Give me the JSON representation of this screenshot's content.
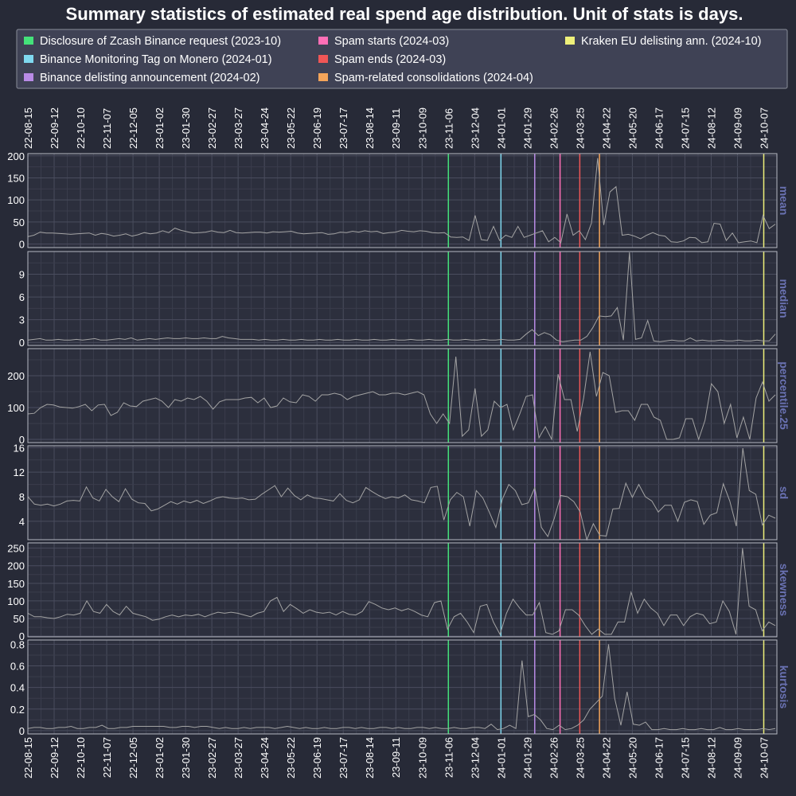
{
  "chart_data": {
    "type": "line",
    "title": "Summary statistics of estimated real spend age distribution. Unit of stats is days.",
    "x_start": "2022-08-15",
    "x_end": "2024-10-21",
    "x_tick_labels": [
      "22-08-15",
      "22-09-12",
      "22-10-10",
      "22-11-07",
      "22-12-05",
      "23-01-02",
      "23-01-30",
      "23-02-27",
      "23-03-27",
      "23-04-24",
      "23-05-22",
      "23-06-19",
      "23-07-17",
      "23-08-14",
      "23-09-11",
      "23-10-09",
      "23-11-06",
      "23-12-04",
      "24-01-01",
      "24-01-29",
      "24-02-26",
      "24-03-25",
      "24-04-22",
      "24-05-20",
      "24-06-17",
      "24-07-15",
      "24-08-12",
      "24-09-09",
      "24-10-07"
    ],
    "events": [
      {
        "label": "Disclosure of Zcash Binance request (2023-10)",
        "date": "2023-11-06",
        "color": "#44e27a"
      },
      {
        "label": "Binance Monitoring Tag on Monero (2024-01)",
        "date": "2024-01-01",
        "color": "#7fd8ef"
      },
      {
        "label": "Binance delisting announcement (2024-02)",
        "date": "2024-02-06",
        "color": "#b98be6"
      },
      {
        "label": "Spam starts (2024-03)",
        "date": "2024-03-04",
        "color": "#ff6fb6"
      },
      {
        "label": "Spam ends (2024-03)",
        "date": "2024-03-25",
        "color": "#f05656"
      },
      {
        "label": "Spam-related consolidations (2024-04)",
        "date": "2024-04-15",
        "color": "#f5a55a"
      },
      {
        "label": "Kraken EU delisting ann. (2024-10)",
        "date": "2024-10-07",
        "color": "#eef07a"
      }
    ],
    "line_color": "#a3a3a3",
    "panels": [
      {
        "name": "mean",
        "ylim": [
          -8,
          205
        ],
        "yticks": [
          0,
          50,
          100,
          150,
          200
        ],
        "values": [
          17,
          20,
          27,
          25,
          25,
          24,
          23,
          22,
          23,
          24,
          25,
          20,
          24,
          22,
          18,
          20,
          23,
          18,
          21,
          26,
          23,
          25,
          30,
          26,
          36,
          31,
          28,
          25,
          26,
          27,
          30,
          27,
          26,
          31,
          26,
          25,
          26,
          27,
          27,
          25,
          28,
          27,
          28,
          29,
          25,
          23,
          24,
          25,
          26,
          22,
          23,
          27,
          26,
          29,
          27,
          30,
          28,
          29,
          24,
          26,
          27,
          31,
          29,
          28,
          30,
          29,
          26,
          25,
          26,
          16,
          15,
          16,
          8,
          65,
          10,
          8,
          40,
          8,
          20,
          15,
          40,
          15,
          20,
          25,
          30,
          5,
          15,
          3,
          68,
          20,
          30,
          10,
          48,
          195,
          43,
          118,
          130,
          20,
          22,
          18,
          12,
          20,
          26,
          20,
          18,
          5,
          4,
          7,
          15,
          14,
          3,
          5,
          47,
          45,
          8,
          25,
          3,
          5,
          7,
          3,
          65,
          35,
          45
        ]
      },
      {
        "name": "median",
        "ylim": [
          -0.4,
          12
        ],
        "yticks": [
          0,
          3,
          6,
          9
        ],
        "values": [
          0.3,
          0.4,
          0.5,
          0.3,
          0.3,
          0.4,
          0.3,
          0.3,
          0.4,
          0.3,
          0.4,
          0.5,
          0.3,
          0.3,
          0.4,
          0.5,
          0.4,
          0.6,
          0.3,
          0.4,
          0.5,
          0.4,
          0.5,
          0.6,
          0.5,
          0.5,
          0.6,
          0.5,
          0.5,
          0.6,
          0.5,
          0.5,
          0.8,
          0.6,
          0.5,
          0.4,
          0.4,
          0.4,
          0.3,
          0.4,
          0.3,
          0.3,
          0.4,
          0.3,
          0.3,
          0.4,
          0.3,
          0.3,
          0.4,
          0.3,
          0.3,
          0.4,
          0.3,
          0.3,
          0.4,
          0.3,
          0.3,
          0.4,
          0.3,
          0.3,
          0.4,
          0.3,
          0.3,
          0.4,
          0.3,
          0.3,
          0.4,
          0.3,
          0.3,
          0.4,
          0.3,
          0.3,
          0.4,
          0.3,
          0.3,
          0.4,
          0.3,
          0.3,
          0.4,
          0.3,
          0.3,
          0.4,
          1.1,
          1.7,
          0.9,
          1.3,
          1.0,
          0.3,
          0.1,
          0.2,
          0.3,
          0.3,
          0.8,
          2.0,
          3.5,
          3.4,
          3.5,
          4.6,
          0.3,
          11.9,
          0.4,
          0.6,
          2.9,
          0.2,
          0.1,
          0.2,
          0.3,
          0.2,
          0.2,
          0.6,
          0.2,
          0.3,
          0.2,
          0.2,
          0.3,
          0.2,
          0.2,
          0.3,
          0.2,
          0.2,
          0.3,
          0.2,
          0.2,
          1.1
        ]
      },
      {
        "name": "percentile.25",
        "ylim": [
          -10,
          285
        ],
        "yticks": [
          0,
          100,
          200
        ],
        "values": [
          80,
          82,
          100,
          110,
          108,
          102,
          100,
          98,
          103,
          110,
          90,
          108,
          110,
          75,
          85,
          115,
          105,
          103,
          120,
          125,
          130,
          120,
          100,
          125,
          120,
          130,
          125,
          135,
          120,
          95,
          118,
          125,
          125,
          125,
          130,
          132,
          115,
          130,
          100,
          105,
          130,
          118,
          115,
          140,
          135,
          120,
          140,
          140,
          145,
          140,
          125,
          135,
          140,
          145,
          150,
          140,
          140,
          145,
          145,
          140,
          145,
          150,
          140,
          80,
          50,
          80,
          50,
          260,
          10,
          30,
          160,
          10,
          30,
          120,
          100,
          110,
          30,
          80,
          135,
          140,
          5,
          40,
          0,
          205,
          125,
          125,
          25,
          130,
          275,
          135,
          210,
          200,
          85,
          90,
          90,
          60,
          110,
          110,
          70,
          60,
          0,
          0,
          5,
          65,
          65,
          0,
          60,
          175,
          150,
          50,
          110,
          5,
          70,
          0,
          130,
          180,
          120,
          140
        ]
      },
      {
        "name": "sd",
        "ylim": [
          1,
          16.3
        ],
        "yticks": [
          4,
          8,
          12,
          16
        ],
        "values": [
          8,
          6.8,
          6.6,
          6.8,
          6.5,
          6.8,
          7.3,
          7.4,
          7.3,
          9.6,
          7.8,
          7.3,
          9.2,
          8.0,
          7.2,
          9.3,
          7.6,
          7.0,
          6.9,
          5.7,
          6.0,
          6.6,
          7.2,
          6.8,
          7.3,
          7.0,
          7.4,
          6.9,
          7.3,
          7.8,
          8.0,
          7.8,
          7.7,
          7.8,
          7.5,
          7.6,
          8.4,
          9.1,
          9.8,
          8.0,
          9.4,
          8.2,
          7.5,
          8.3,
          7.8,
          7.7,
          7.5,
          7.3,
          8.5,
          7.4,
          7.0,
          7.5,
          9.5,
          8.8,
          8.2,
          7.7,
          8.0,
          7.8,
          8.3,
          7.5,
          7.3,
          7.0,
          9.5,
          9.7,
          4.2,
          7.5,
          8.7,
          8.0,
          3.2,
          9.0,
          7.8,
          5.5,
          3.0,
          7.6,
          10.0,
          9.0,
          6.7,
          7.0,
          9.5,
          3.0,
          1.5,
          4.5,
          8.2,
          8.0,
          7.2,
          5.5,
          1.0,
          3.6,
          1.7,
          1.6,
          6.0,
          6.1,
          10.2,
          7.9,
          10.0,
          8.0,
          7.3,
          5.5,
          6.6,
          6.6,
          4.0,
          7.1,
          7.5,
          7.2,
          3.5,
          5.0,
          5.4,
          10.1,
          7.3,
          3.2,
          15.9,
          9.0,
          8.4,
          3.4,
          5.0,
          4.5
        ]
      },
      {
        "name": "skewness",
        "ylim": [
          -2,
          265
        ],
        "yticks": [
          0,
          50,
          100,
          150,
          200,
          250
        ],
        "values": [
          65,
          55,
          55,
          52,
          50,
          55,
          62,
          60,
          65,
          100,
          70,
          65,
          90,
          70,
          60,
          85,
          65,
          60,
          55,
          45,
          48,
          55,
          60,
          55,
          60,
          58,
          62,
          55,
          62,
          68,
          65,
          68,
          65,
          60,
          55,
          65,
          70,
          100,
          110,
          70,
          90,
          78,
          65,
          75,
          68,
          65,
          68,
          60,
          70,
          62,
          60,
          70,
          98,
          90,
          80,
          75,
          80,
          72,
          78,
          70,
          60,
          55,
          95,
          100,
          20,
          55,
          65,
          40,
          10,
          85,
          90,
          40,
          5,
          65,
          105,
          80,
          60,
          60,
          95,
          10,
          5,
          15,
          75,
          75,
          60,
          30,
          5,
          20,
          5,
          5,
          40,
          40,
          125,
          65,
          105,
          80,
          65,
          30,
          60,
          60,
          30,
          55,
          65,
          60,
          35,
          40,
          100,
          70,
          5,
          250,
          85,
          75,
          15,
          40,
          30
        ]
      },
      {
        "name": "kurtosis",
        "ylim": [
          -0.03,
          0.84
        ],
        "yticks": [
          0.0,
          0.2,
          0.4,
          0.6,
          0.8
        ],
        "values": [
          0.02,
          0.03,
          0.03,
          0.02,
          0.02,
          0.03,
          0.03,
          0.04,
          0.02,
          0.02,
          0.03,
          0.03,
          0.05,
          0.02,
          0.02,
          0.03,
          0.03,
          0.04,
          0.04,
          0.04,
          0.04,
          0.04,
          0.04,
          0.03,
          0.03,
          0.04,
          0.04,
          0.03,
          0.04,
          0.04,
          0.03,
          0.02,
          0.03,
          0.02,
          0.02,
          0.03,
          0.02,
          0.03,
          0.03,
          0.03,
          0.02,
          0.03,
          0.04,
          0.03,
          0.02,
          0.03,
          0.02,
          0.02,
          0.03,
          0.02,
          0.02,
          0.03,
          0.03,
          0.02,
          0.03,
          0.02,
          0.02,
          0.03,
          0.03,
          0.02,
          0.03,
          0.02,
          0.02,
          0.03,
          0.03,
          0.02,
          0.03,
          0.02,
          0.02,
          0.03,
          0.02,
          0.02,
          0.03,
          0.03,
          0.02,
          0.06,
          0.01,
          0.02,
          0.05,
          0.02,
          0.65,
          0.13,
          0.15,
          0.1,
          0.02,
          0.01,
          0.05,
          0.01,
          0.02,
          0.05,
          0.1,
          0.2,
          0.26,
          0.32,
          0.8,
          0.3,
          0.05,
          0.36,
          0.06,
          0.05,
          0.08,
          0.01,
          0.01,
          0.02,
          0.01,
          0.01,
          0.02,
          0.01,
          0.01,
          0.02,
          0.01,
          0.01,
          0.03,
          0.01,
          0.01,
          0.02,
          0.01,
          0.01,
          0.01,
          0.02,
          0.01,
          0.02
        ]
      }
    ]
  }
}
